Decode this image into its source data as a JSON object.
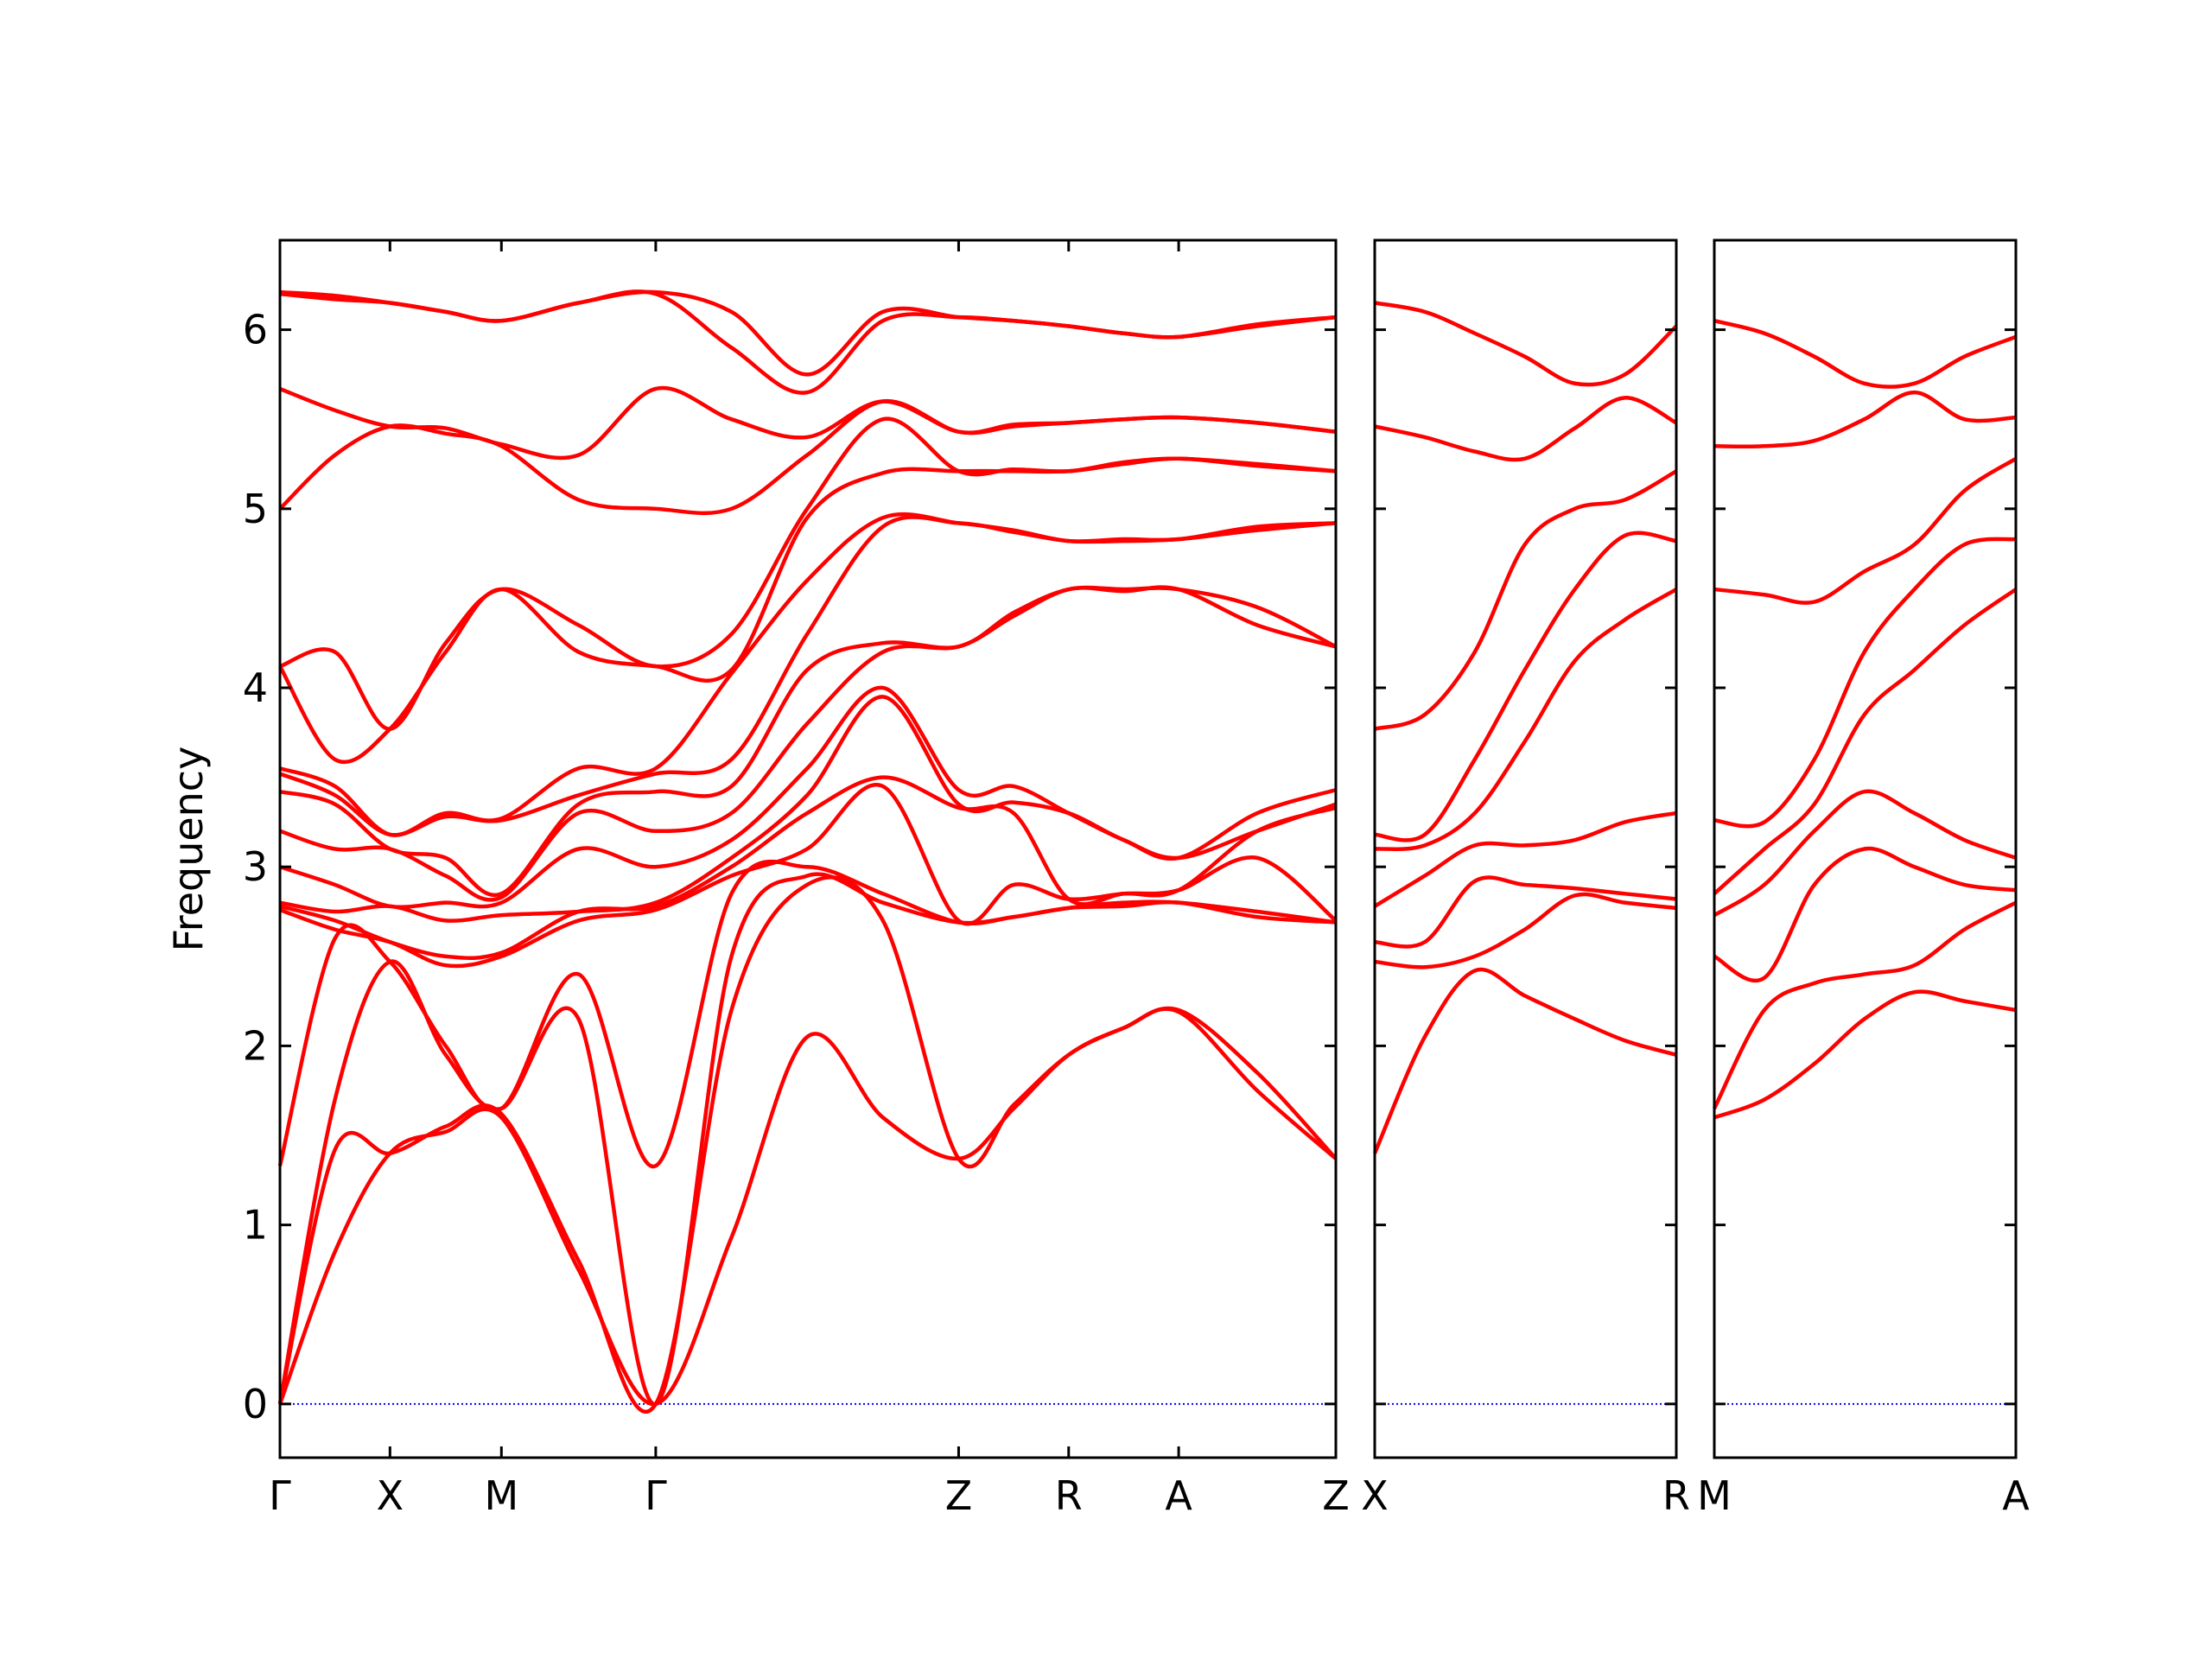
{
  "chart_data": [
    {
      "type": "line",
      "ylabel": "Frequency",
      "ytick_labels": true,
      "ylim": [
        -0.3,
        6.5
      ],
      "yticks": [
        0,
        1,
        2,
        3,
        4,
        5,
        6
      ],
      "xlim": [
        0,
        7.39
      ],
      "xticks": [
        {
          "value": 0,
          "label": "Γ"
        },
        {
          "value": 0.77,
          "label": "X"
        },
        {
          "value": 1.55,
          "label": "M"
        },
        {
          "value": 2.63,
          "label": "Γ"
        },
        {
          "value": 4.75,
          "label": "Z"
        },
        {
          "value": 5.52,
          "label": "R"
        },
        {
          "value": 6.29,
          "label": "A"
        },
        {
          "value": 7.39,
          "label": "Z"
        }
      ],
      "hline": 0,
      "hline_color": "#0000ff",
      "color": "#ff0000",
      "x": [
        0,
        0.385,
        0.77,
        1.16,
        1.55,
        2.09,
        2.63,
        3.16,
        3.69,
        4.22,
        4.75,
        5.135,
        5.52,
        5.905,
        6.29,
        6.84,
        7.39
      ],
      "series": [
        {
          "values": [
            0,
            0.85,
            1.4,
            1.52,
            1.6,
            0.75,
            0,
            0.93,
            2.05,
            1.6,
            1.37,
            1.65,
            1.95,
            2.1,
            2.19,
            1.75,
            1.37
          ]
        },
        {
          "values": [
            0,
            1.42,
            1.4,
            1.55,
            1.62,
            0.8,
            0,
            2.2,
            2.9,
            2.7,
            1.37,
            1.67,
            1.95,
            2.1,
            2.2,
            1.85,
            1.37
          ]
        },
        {
          "values": [
            0,
            1.7,
            2.47,
            1.95,
            1.65,
            2.15,
            0,
            2.5,
            2.95,
            2.8,
            2.69,
            2.72,
            2.77,
            2.78,
            2.8,
            2.72,
            2.69
          ]
        },
        {
          "values": [
            1.33,
            2.6,
            2.47,
            2.0,
            1.65,
            2.4,
            1.33,
            2.85,
            3.0,
            2.85,
            2.69,
            2.72,
            2.77,
            2.8,
            2.8,
            2.75,
            2.69
          ]
        },
        {
          "values": [
            2.76,
            2.65,
            2.58,
            2.45,
            2.5,
            2.7,
            2.76,
            2.95,
            3.1,
            3.45,
            2.7,
            2.9,
            2.82,
            2.85,
            2.87,
            3.05,
            2.7
          ]
        },
        {
          "values": [
            2.78,
            2.7,
            2.58,
            2.5,
            2.52,
            2.75,
            2.78,
            3.0,
            3.3,
            3.5,
            3.33,
            3.3,
            2.82,
            2.85,
            2.87,
            3.2,
            3.33
          ]
        },
        {
          "values": [
            2.8,
            2.75,
            2.78,
            2.7,
            2.73,
            2.75,
            2.8,
            3.05,
            3.4,
            3.95,
            3.35,
            3.36,
            3.3,
            3.15,
            3.05,
            3.2,
            3.35
          ]
        },
        {
          "values": [
            3.0,
            2.9,
            2.78,
            2.8,
            2.8,
            3.1,
            3.0,
            3.15,
            3.55,
            4.0,
            3.43,
            3.45,
            3.3,
            3.15,
            3.05,
            3.3,
            3.43
          ]
        },
        {
          "values": [
            3.2,
            3.1,
            3.1,
            2.95,
            2.83,
            3.3,
            3.2,
            3.3,
            3.8,
            4.2,
            4.23,
            4.4,
            4.55,
            4.54,
            4.55,
            4.35,
            4.23
          ]
        },
        {
          "values": [
            3.42,
            3.35,
            3.1,
            3.05,
            2.85,
            3.35,
            3.42,
            3.45,
            4.1,
            4.25,
            4.23,
            4.42,
            4.55,
            4.55,
            4.55,
            4.45,
            4.23
          ]
        },
        {
          "values": [
            3.52,
            3.4,
            3.18,
            3.28,
            3.26,
            3.4,
            3.52,
            3.6,
            4.3,
            4.9,
            4.92,
            4.87,
            4.82,
            4.82,
            4.83,
            4.88,
            4.92
          ]
        },
        {
          "values": [
            3.55,
            3.45,
            3.18,
            3.3,
            3.27,
            3.55,
            3.55,
            4.08,
            4.6,
            4.95,
            4.92,
            4.88,
            4.82,
            4.83,
            4.83,
            4.9,
            4.92
          ]
        },
        {
          "values": [
            4.12,
            3.6,
            3.77,
            4.2,
            4.55,
            4.2,
            4.12,
            4.1,
            4.95,
            5.2,
            5.21,
            5.21,
            5.21,
            5.25,
            5.28,
            5.24,
            5.21
          ]
        },
        {
          "values": [
            4.12,
            4.2,
            3.77,
            4.25,
            4.55,
            4.35,
            4.12,
            4.3,
            5.0,
            5.5,
            5.21,
            5.22,
            5.21,
            5.26,
            5.28,
            5.25,
            5.21
          ]
        },
        {
          "values": [
            5.0,
            5.3,
            5.46,
            5.42,
            5.35,
            5.05,
            5.0,
            5.0,
            5.3,
            5.6,
            5.43,
            5.46,
            5.48,
            5.5,
            5.51,
            5.48,
            5.43
          ]
        },
        {
          "values": [
            5.67,
            5.55,
            5.46,
            5.45,
            5.36,
            5.3,
            5.67,
            5.5,
            5.4,
            5.6,
            5.43,
            5.47,
            5.48,
            5.5,
            5.51,
            5.48,
            5.43
          ]
        },
        {
          "values": [
            6.2,
            6.17,
            6.15,
            6.1,
            6.05,
            6.15,
            6.2,
            5.9,
            5.65,
            6.05,
            6.07,
            6.05,
            6.02,
            5.98,
            5.96,
            6.02,
            6.07
          ]
        },
        {
          "values": [
            6.21,
            6.19,
            6.15,
            6.1,
            6.05,
            6.15,
            6.21,
            6.1,
            5.75,
            6.1,
            6.07,
            6.05,
            6.02,
            5.98,
            5.96,
            6.03,
            6.07
          ]
        }
      ]
    },
    {
      "type": "line",
      "ytick_labels": false,
      "ylim": [
        -0.3,
        6.5
      ],
      "yticks": [
        0,
        1,
        2,
        3,
        4,
        5,
        6
      ],
      "xlim": [
        0,
        2.11
      ],
      "xticks": [
        {
          "value": 0,
          "label": "X"
        },
        {
          "value": 2.11,
          "label": "R"
        }
      ],
      "hline": 0,
      "hline_color": "#0000ff",
      "color": "#ff0000",
      "x": [
        0,
        0.35,
        0.7,
        1.05,
        1.4,
        1.75,
        2.11
      ],
      "series": [
        {
          "values": [
            1.4,
            2.05,
            2.42,
            2.28,
            2.15,
            2.03,
            1.95
          ]
        },
        {
          "values": [
            2.47,
            2.44,
            2.5,
            2.65,
            2.84,
            2.8,
            2.77
          ]
        },
        {
          "values": [
            2.58,
            2.58,
            2.92,
            2.9,
            2.88,
            2.85,
            2.82
          ]
        },
        {
          "values": [
            2.78,
            2.95,
            3.12,
            3.12,
            3.15,
            3.25,
            3.3
          ]
        },
        {
          "values": [
            3.1,
            3.12,
            3.3,
            3.7,
            4.15,
            4.38,
            4.55
          ]
        },
        {
          "values": [
            3.18,
            3.18,
            3.6,
            4.1,
            4.55,
            4.85,
            4.82
          ]
        },
        {
          "values": [
            3.77,
            3.85,
            4.2,
            4.8,
            5.0,
            5.05,
            5.21
          ]
        },
        {
          "values": [
            5.46,
            5.4,
            5.32,
            5.28,
            5.45,
            5.62,
            5.48
          ]
        },
        {
          "values": [
            6.15,
            6.1,
            5.98,
            5.85,
            5.7,
            5.75,
            6.02
          ]
        }
      ]
    },
    {
      "type": "line",
      "ytick_labels": false,
      "ylim": [
        -0.3,
        6.5
      ],
      "yticks": [
        0,
        1,
        2,
        3,
        4,
        5,
        6
      ],
      "xlim": [
        0,
        2.11
      ],
      "xticks": [
        {
          "value": 0,
          "label": "M"
        },
        {
          "value": 2.11,
          "label": "A"
        }
      ],
      "hline": 0,
      "hline_color": "#0000ff",
      "color": "#ff0000",
      "x": [
        0,
        0.35,
        0.7,
        1.05,
        1.4,
        1.75,
        2.11
      ],
      "series": [
        {
          "values": [
            1.6,
            1.7,
            1.9,
            2.15,
            2.3,
            2.25,
            2.2
          ]
        },
        {
          "values": [
            1.65,
            2.2,
            2.35,
            2.4,
            2.45,
            2.65,
            2.8
          ]
        },
        {
          "values": [
            2.5,
            2.38,
            2.9,
            3.1,
            3.0,
            2.9,
            2.87
          ]
        },
        {
          "values": [
            2.73,
            2.9,
            3.2,
            3.42,
            3.3,
            3.15,
            3.05
          ]
        },
        {
          "values": [
            2.85,
            3.1,
            3.35,
            3.85,
            4.1,
            4.35,
            4.55
          ]
        },
        {
          "values": [
            3.26,
            3.25,
            3.6,
            4.2,
            4.55,
            4.8,
            4.83
          ]
        },
        {
          "values": [
            4.55,
            4.52,
            4.48,
            4.65,
            4.8,
            5.1,
            5.28
          ]
        },
        {
          "values": [
            5.35,
            5.35,
            5.38,
            5.5,
            5.65,
            5.5,
            5.51
          ]
        },
        {
          "values": [
            6.05,
            5.98,
            5.85,
            5.7,
            5.7,
            5.85,
            5.96
          ]
        }
      ]
    }
  ]
}
